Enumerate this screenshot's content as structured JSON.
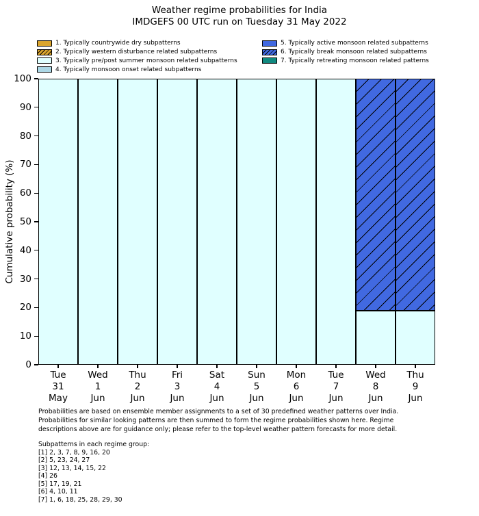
{
  "title": {
    "line1": "Weather regime probabilities for India",
    "line2": "IMDGEFS 00 UTC run on Tuesday 31 May 2022"
  },
  "colors": {
    "regime_dry": "#dba52e",
    "regime_pre_post": "#e0ffff",
    "regime_onset": "#add8e6",
    "regime_active": "#4169e1",
    "regime_retreating": "#108980",
    "edge": "#000000"
  },
  "legend": {
    "items": [
      {
        "label": "1. Typically countrywide dry subpatterns",
        "color": "#dba52e",
        "hatch": false,
        "column": "left"
      },
      {
        "label": "2. Typically western disturbance related subpatterns",
        "color": "#dba52e",
        "hatch": true,
        "column": "left"
      },
      {
        "label": "3. Typically pre/post summer monsoon related subpatterns",
        "color": "#e0ffff",
        "hatch": false,
        "column": "left"
      },
      {
        "label": "4. Typically monsoon onset related subpatterns",
        "color": "#add8e6",
        "hatch": false,
        "column": "left"
      },
      {
        "label": "5. Typically active monsoon related subpatterns",
        "color": "#4169e1",
        "hatch": false,
        "column": "right"
      },
      {
        "label": "6. Typically break monsoon related subpatterns",
        "color": "#4169e1",
        "hatch": true,
        "column": "right"
      },
      {
        "label": "7. Typically retreating monsoon related patterns",
        "color": "#108980",
        "hatch": false,
        "column": "right"
      }
    ]
  },
  "chart_data": {
    "type": "bar",
    "stacked": true,
    "grid": false,
    "legend_position": "top",
    "ylabel": "Cumulative probability (%)",
    "ylim": [
      0,
      100
    ],
    "yticks": [
      0,
      10,
      20,
      30,
      40,
      50,
      60,
      70,
      80,
      90,
      100
    ],
    "categories": [
      {
        "weekday": "Tue",
        "day": "31",
        "month": "May"
      },
      {
        "weekday": "Wed",
        "day": "1",
        "month": "Jun"
      },
      {
        "weekday": "Thu",
        "day": "2",
        "month": "Jun"
      },
      {
        "weekday": "Fri",
        "day": "3",
        "month": "Jun"
      },
      {
        "weekday": "Sat",
        "day": "4",
        "month": "Jun"
      },
      {
        "weekday": "Sun",
        "day": "5",
        "month": "Jun"
      },
      {
        "weekday": "Mon",
        "day": "6",
        "month": "Jun"
      },
      {
        "weekday": "Tue",
        "day": "7",
        "month": "Jun"
      },
      {
        "weekday": "Wed",
        "day": "8",
        "month": "Jun"
      },
      {
        "weekday": "Thu",
        "day": "9",
        "month": "Jun"
      }
    ],
    "series": [
      {
        "name": "3. Typically pre/post summer monsoon related subpatterns",
        "color": "#e0ffff",
        "hatch": false,
        "values": [
          100,
          100,
          100,
          100,
          100,
          100,
          100,
          100,
          19,
          19
        ]
      },
      {
        "name": "6. Typically break monsoon related subpatterns",
        "color": "#4169e1",
        "hatch": true,
        "values": [
          0,
          0,
          0,
          0,
          0,
          0,
          0,
          0,
          81,
          81
        ]
      }
    ]
  },
  "footnote": {
    "lines": [
      "Probabilities are based on ensemble member assignments to a set of 30 predefined weather patterns over India.",
      "Probabilities for similar looking patterns are then summed to form the regime probabilities shown here. Regime",
      "descriptions above are for guidance only; please refer to the top-level weather pattern forecasts for more detail."
    ]
  },
  "subpatterns": {
    "heading": "Subpatterns in each regime group:",
    "lines": [
      "[1] 2, 3, 7, 8, 9, 16, 20",
      "[2] 5, 23, 24, 27",
      "[3] 12, 13, 14, 15, 22",
      "[4] 26",
      "[5] 17, 19, 21",
      "[6] 4, 10, 11",
      "[7] 1, 6, 18, 25, 28, 29, 30"
    ]
  }
}
